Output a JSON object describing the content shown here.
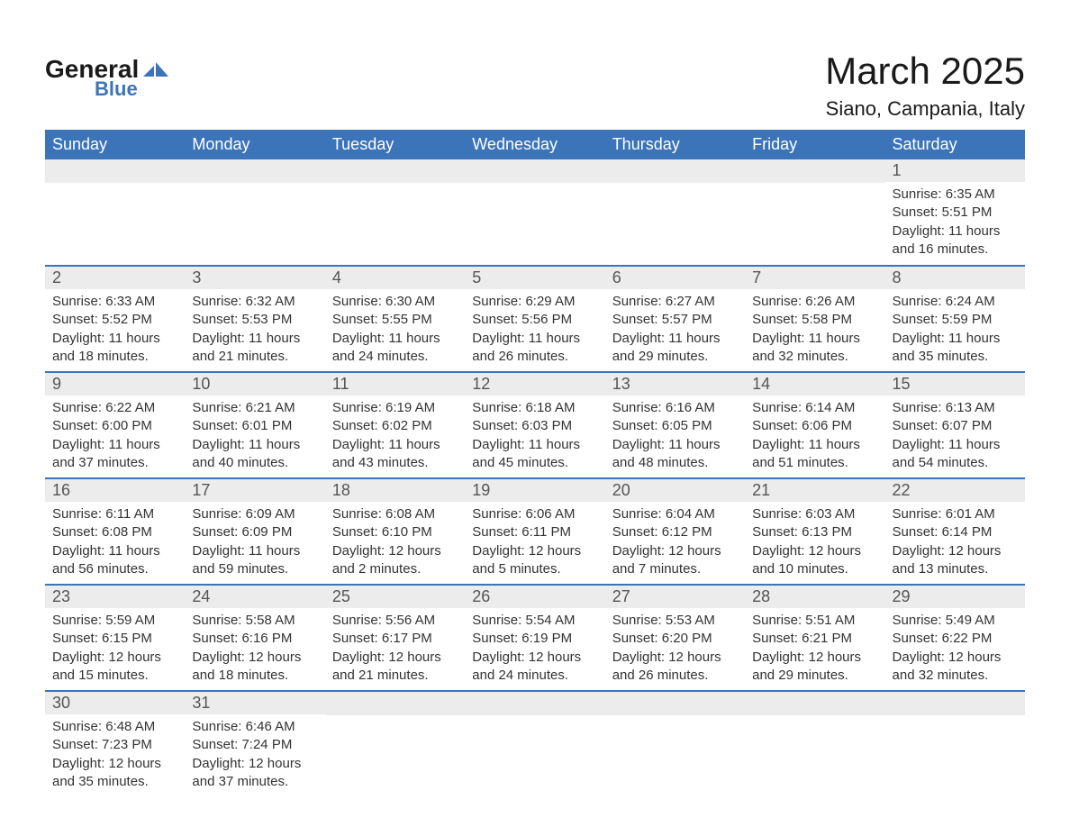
{
  "logo": {
    "text_general": "General",
    "text_blue": "Blue",
    "icon_color": "#3b74b9"
  },
  "header": {
    "month_title": "March 2025",
    "location": "Siano, Campania, Italy"
  },
  "styling": {
    "header_bg": "#3b74b9",
    "header_text": "#ffffff",
    "daynum_bg": "#ececec",
    "daynum_text": "#555555",
    "body_text": "#333333",
    "row_border": "#3b74b9",
    "page_bg": "#ffffff",
    "title_fontsize": 42,
    "location_fontsize": 22,
    "dayheader_fontsize": 18,
    "content_fontsize": 15
  },
  "columns": [
    "Sunday",
    "Monday",
    "Tuesday",
    "Wednesday",
    "Thursday",
    "Friday",
    "Saturday"
  ],
  "weeks": [
    [
      null,
      null,
      null,
      null,
      null,
      null,
      {
        "n": "1",
        "sunrise": "6:35 AM",
        "sunset": "5:51 PM",
        "daylight": "11 hours and 16 minutes."
      }
    ],
    [
      {
        "n": "2",
        "sunrise": "6:33 AM",
        "sunset": "5:52 PM",
        "daylight": "11 hours and 18 minutes."
      },
      {
        "n": "3",
        "sunrise": "6:32 AM",
        "sunset": "5:53 PM",
        "daylight": "11 hours and 21 minutes."
      },
      {
        "n": "4",
        "sunrise": "6:30 AM",
        "sunset": "5:55 PM",
        "daylight": "11 hours and 24 minutes."
      },
      {
        "n": "5",
        "sunrise": "6:29 AM",
        "sunset": "5:56 PM",
        "daylight": "11 hours and 26 minutes."
      },
      {
        "n": "6",
        "sunrise": "6:27 AM",
        "sunset": "5:57 PM",
        "daylight": "11 hours and 29 minutes."
      },
      {
        "n": "7",
        "sunrise": "6:26 AM",
        "sunset": "5:58 PM",
        "daylight": "11 hours and 32 minutes."
      },
      {
        "n": "8",
        "sunrise": "6:24 AM",
        "sunset": "5:59 PM",
        "daylight": "11 hours and 35 minutes."
      }
    ],
    [
      {
        "n": "9",
        "sunrise": "6:22 AM",
        "sunset": "6:00 PM",
        "daylight": "11 hours and 37 minutes."
      },
      {
        "n": "10",
        "sunrise": "6:21 AM",
        "sunset": "6:01 PM",
        "daylight": "11 hours and 40 minutes."
      },
      {
        "n": "11",
        "sunrise": "6:19 AM",
        "sunset": "6:02 PM",
        "daylight": "11 hours and 43 minutes."
      },
      {
        "n": "12",
        "sunrise": "6:18 AM",
        "sunset": "6:03 PM",
        "daylight": "11 hours and 45 minutes."
      },
      {
        "n": "13",
        "sunrise": "6:16 AM",
        "sunset": "6:05 PM",
        "daylight": "11 hours and 48 minutes."
      },
      {
        "n": "14",
        "sunrise": "6:14 AM",
        "sunset": "6:06 PM",
        "daylight": "11 hours and 51 minutes."
      },
      {
        "n": "15",
        "sunrise": "6:13 AM",
        "sunset": "6:07 PM",
        "daylight": "11 hours and 54 minutes."
      }
    ],
    [
      {
        "n": "16",
        "sunrise": "6:11 AM",
        "sunset": "6:08 PM",
        "daylight": "11 hours and 56 minutes."
      },
      {
        "n": "17",
        "sunrise": "6:09 AM",
        "sunset": "6:09 PM",
        "daylight": "11 hours and 59 minutes."
      },
      {
        "n": "18",
        "sunrise": "6:08 AM",
        "sunset": "6:10 PM",
        "daylight": "12 hours and 2 minutes."
      },
      {
        "n": "19",
        "sunrise": "6:06 AM",
        "sunset": "6:11 PM",
        "daylight": "12 hours and 5 minutes."
      },
      {
        "n": "20",
        "sunrise": "6:04 AM",
        "sunset": "6:12 PM",
        "daylight": "12 hours and 7 minutes."
      },
      {
        "n": "21",
        "sunrise": "6:03 AM",
        "sunset": "6:13 PM",
        "daylight": "12 hours and 10 minutes."
      },
      {
        "n": "22",
        "sunrise": "6:01 AM",
        "sunset": "6:14 PM",
        "daylight": "12 hours and 13 minutes."
      }
    ],
    [
      {
        "n": "23",
        "sunrise": "5:59 AM",
        "sunset": "6:15 PM",
        "daylight": "12 hours and 15 minutes."
      },
      {
        "n": "24",
        "sunrise": "5:58 AM",
        "sunset": "6:16 PM",
        "daylight": "12 hours and 18 minutes."
      },
      {
        "n": "25",
        "sunrise": "5:56 AM",
        "sunset": "6:17 PM",
        "daylight": "12 hours and 21 minutes."
      },
      {
        "n": "26",
        "sunrise": "5:54 AM",
        "sunset": "6:19 PM",
        "daylight": "12 hours and 24 minutes."
      },
      {
        "n": "27",
        "sunrise": "5:53 AM",
        "sunset": "6:20 PM",
        "daylight": "12 hours and 26 minutes."
      },
      {
        "n": "28",
        "sunrise": "5:51 AM",
        "sunset": "6:21 PM",
        "daylight": "12 hours and 29 minutes."
      },
      {
        "n": "29",
        "sunrise": "5:49 AM",
        "sunset": "6:22 PM",
        "daylight": "12 hours and 32 minutes."
      }
    ],
    [
      {
        "n": "30",
        "sunrise": "6:48 AM",
        "sunset": "7:23 PM",
        "daylight": "12 hours and 35 minutes."
      },
      {
        "n": "31",
        "sunrise": "6:46 AM",
        "sunset": "7:24 PM",
        "daylight": "12 hours and 37 minutes."
      },
      null,
      null,
      null,
      null,
      null
    ]
  ],
  "labels": {
    "sunrise": "Sunrise:",
    "sunset": "Sunset:",
    "daylight": "Daylight:"
  }
}
